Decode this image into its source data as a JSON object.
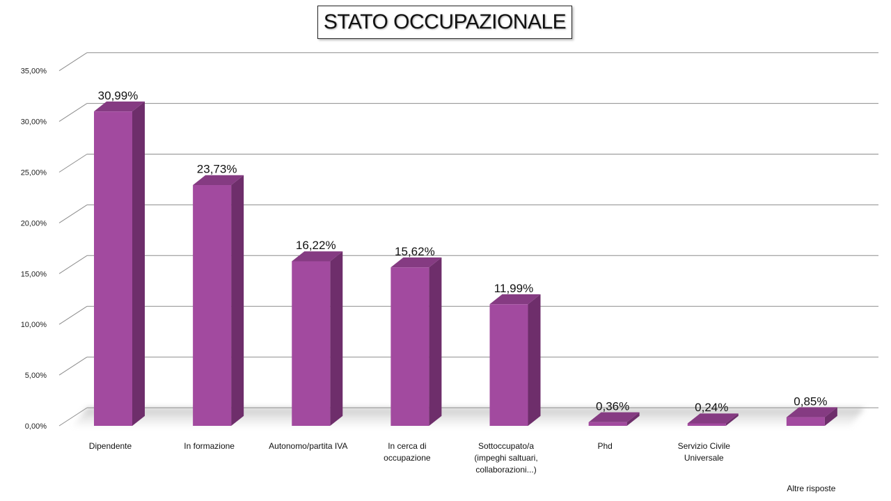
{
  "chart_data": {
    "type": "bar",
    "title": "STATO OCCUPAZIONALE",
    "xlabel": "",
    "ylabel": "",
    "ylim": [
      0,
      35
    ],
    "y_ticks": [
      "0,00%",
      "5,00%",
      "10,00%",
      "15,00%",
      "20,00%",
      "25,00%",
      "30,00%",
      "35,00%"
    ],
    "categories": [
      [
        "Dipendente"
      ],
      [
        "In formazione"
      ],
      [
        "Autonomo/partita IVA"
      ],
      [
        "In cerca di",
        "occupazione"
      ],
      [
        "Sottoccupato/a",
        "(impeghi saltuari,",
        "collaborazioni...)"
      ],
      [
        "Phd"
      ],
      [
        "Servizio Civile",
        "Universale"
      ],
      [
        "Altre risposte"
      ]
    ],
    "values": [
      30.99,
      23.73,
      16.22,
      15.62,
      11.99,
      0.36,
      0.24,
      0.85
    ],
    "data_labels": [
      "30,99%",
      "23,73%",
      "16,22%",
      "15,62%",
      "11,99%",
      "0,36%",
      "0,24%",
      "0,85%"
    ],
    "grid": true,
    "legend": "none",
    "colors": {
      "bar_front": "#a24a9f",
      "bar_side": "#6e2e6b",
      "bar_top": "#853b82",
      "grid": "#8c8c8c"
    }
  }
}
